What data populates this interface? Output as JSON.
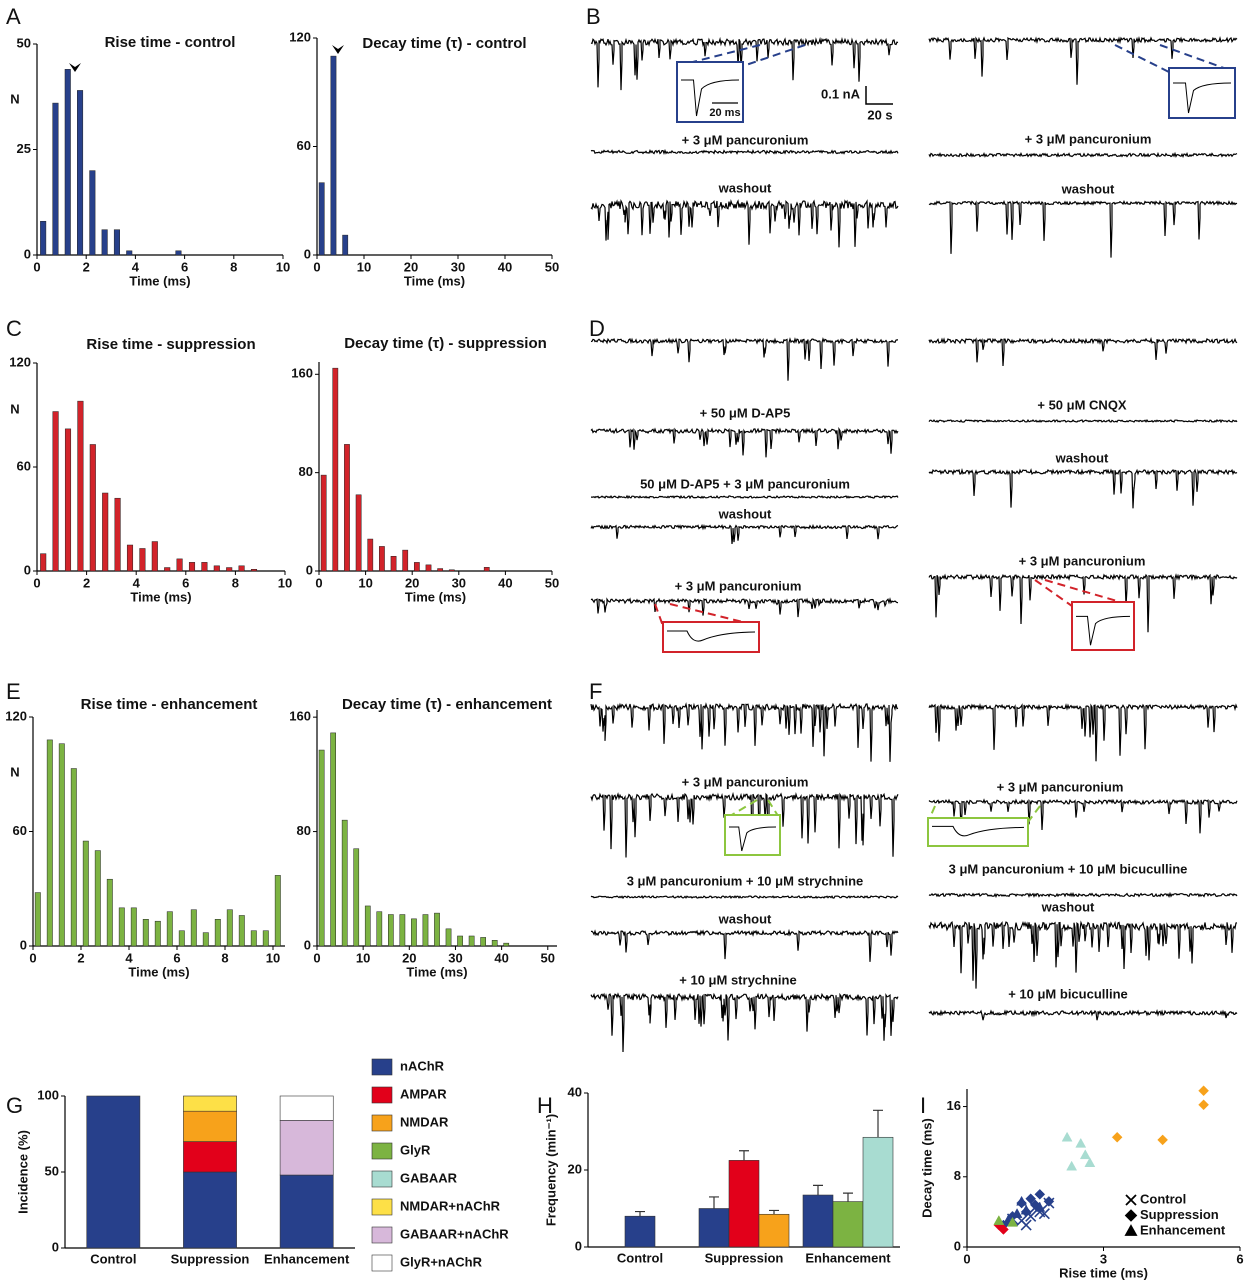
{
  "panel_letters": [
    "A",
    "B",
    "C",
    "D",
    "E",
    "F",
    "G",
    "H",
    "I"
  ],
  "scale_bar": {
    "current": "0.1 nA",
    "time": "20 s",
    "inset_time": "20 ms"
  },
  "trace_panels": [
    {
      "left": [
        "+ 3 μM pancuronium",
        "washout"
      ],
      "right": [
        "+ 3 μM pancuronium",
        "washout"
      ]
    },
    {
      "left": [
        "+ 50 μM D-AP5",
        "50 μM D-AP5 + 3 μM pancuronium",
        "washout",
        "+ 3 μM pancuronium"
      ],
      "right": [
        "+ 50 μM CNQX",
        "washout",
        "+ 3 μM pancuronium"
      ]
    },
    {
      "left": [
        "+ 3 μM pancuronium",
        "3 μM pancuronium + 10 μM strychnine",
        "washout",
        "+ 10 μM strychnine"
      ],
      "right": [
        "+ 3 μM pancuronium",
        "3 μM pancuronium + 10 μM bicuculline",
        "washout",
        "+ 10 μM bicuculline"
      ]
    }
  ],
  "chart_data": [
    {
      "type": "bar",
      "title": "Rise time - control",
      "xlabel": "Time (ms)",
      "ylabel": "N",
      "color": "#27408b",
      "x": [
        0.25,
        0.75,
        1.25,
        1.75,
        2.25,
        2.75,
        3.25,
        3.75,
        5.75
      ],
      "values": [
        8,
        36,
        44,
        39,
        20,
        6,
        6,
        1,
        1
      ],
      "xlim": [
        0,
        10
      ],
      "ylim": [
        0,
        50
      ],
      "xticks": [
        0,
        2,
        4,
        6,
        8,
        10
      ],
      "yticks": [
        0,
        25,
        50
      ]
    },
    {
      "type": "bar",
      "title": "Decay time (τ) - control",
      "xlabel": "Time (ms)",
      "color": "#27408b",
      "x": [
        1,
        3.5,
        6
      ],
      "values": [
        40,
        110,
        11
      ],
      "xlim": [
        0,
        50
      ],
      "ylim": [
        0,
        120
      ],
      "xticks": [
        0,
        10,
        20,
        30,
        40,
        50
      ],
      "yticks": [
        0,
        60,
        120
      ]
    },
    {
      "type": "bar",
      "title": "Rise time - suppression",
      "xlabel": "Time (ms)",
      "ylabel": "N",
      "color": "#d2232a",
      "x": [
        0.25,
        0.75,
        1.25,
        1.75,
        2.25,
        2.75,
        3.25,
        3.75,
        4.25,
        4.75,
        5.25,
        5.75,
        6.25,
        6.75,
        7.25,
        7.75,
        8.25,
        8.75
      ],
      "values": [
        10,
        92,
        82,
        98,
        73,
        45,
        42,
        15,
        13,
        17,
        2,
        7,
        5,
        5,
        3,
        2,
        3,
        1
      ],
      "xlim": [
        0,
        10
      ],
      "ylim": [
        0,
        120
      ],
      "xticks": [
        0,
        2,
        4,
        6,
        8,
        10
      ],
      "yticks": [
        0,
        60,
        120
      ]
    },
    {
      "type": "bar",
      "title": "Decay time (τ) - suppression",
      "xlabel": "Time (ms)",
      "color": "#d2232a",
      "x": [
        1,
        3.5,
        6,
        8.5,
        11,
        13.5,
        16,
        18.5,
        21,
        23.5,
        26,
        28.5,
        36
      ],
      "values": [
        78,
        165,
        103,
        62,
        26,
        20,
        12,
        17,
        7,
        5,
        2,
        1,
        3
      ],
      "xlim": [
        0,
        50
      ],
      "ylim": [
        0,
        170
      ],
      "xticks": [
        0,
        10,
        20,
        30,
        40,
        50
      ],
      "yticks": [
        0,
        80,
        160
      ]
    },
    {
      "type": "bar",
      "title": "Rise time - enhancement",
      "xlabel": "Time (ms)",
      "ylabel": "N",
      "color": "#7cb342",
      "x": [
        0.2,
        0.7,
        1.2,
        1.7,
        2.2,
        2.7,
        3.2,
        3.7,
        4.2,
        4.7,
        5.2,
        5.7,
        6.2,
        6.7,
        7.2,
        7.7,
        8.2,
        8.7,
        9.2,
        9.7,
        10.2
      ],
      "values": [
        28,
        108,
        106,
        93,
        55,
        50,
        35,
        20,
        20,
        14,
        13,
        18,
        8,
        19,
        7,
        14,
        19,
        16,
        8,
        8,
        37
      ],
      "xlim": [
        0,
        10.5
      ],
      "ylim": [
        0,
        120
      ],
      "xticks": [
        0,
        2,
        4,
        6,
        8,
        10
      ],
      "yticks": [
        0,
        60,
        120
      ]
    },
    {
      "type": "bar",
      "title": "Decay time (τ) - enhancement",
      "xlabel": "Time (ms)",
      "color": "#7cb342",
      "x": [
        1,
        3.5,
        6,
        8.5,
        11,
        13.5,
        16,
        18.5,
        21,
        23.5,
        26,
        28.5,
        31,
        33.5,
        36,
        38.5,
        41
      ],
      "values": [
        137,
        149,
        88,
        68,
        28,
        24,
        22,
        22,
        19,
        22,
        23,
        12,
        7,
        7,
        6,
        4,
        2
      ],
      "xlim": [
        0,
        52
      ],
      "ylim": [
        0,
        165
      ],
      "xticks": [
        0,
        10,
        20,
        30,
        40,
        50
      ],
      "yticks": [
        0,
        80,
        160
      ]
    },
    {
      "type": "stacked_bar",
      "ylabel": "Incidence (%)",
      "categories": [
        "Control",
        "Suppression",
        "Enhancement"
      ],
      "ylim": [
        0,
        100
      ],
      "yticks": [
        0,
        50,
        100
      ],
      "legend": "right",
      "series": [
        {
          "name": "nAChR",
          "color": "#27408b",
          "values": [
            100,
            50,
            48
          ]
        },
        {
          "name": "AMPAR",
          "color": "#e2001a",
          "values": [
            0,
            20,
            0
          ]
        },
        {
          "name": "NMDAR",
          "color": "#f7a21b",
          "values": [
            0,
            20,
            0
          ]
        },
        {
          "name": "GlyR",
          "color": "#7cb342",
          "values": [
            0,
            0,
            0
          ]
        },
        {
          "name": "GABAAR",
          "color": "#a8dcd1",
          "values": [
            0,
            0,
            0
          ]
        },
        {
          "name": "NMDAR+nAChR",
          "color": "#fde047",
          "values": [
            0,
            10,
            0
          ]
        },
        {
          "name": "GABAAR+nAChR",
          "color": "#d7b8da",
          "values": [
            0,
            0,
            36
          ]
        },
        {
          "name": "GlyR+nAChR",
          "color": "#ffffff",
          "values": [
            0,
            0,
            16
          ]
        }
      ]
    },
    {
      "type": "grouped_bar",
      "ylabel": "Frequency (min⁻¹)",
      "categories": [
        "Control",
        "Suppression",
        "Enhancement"
      ],
      "ylim": [
        0,
        40
      ],
      "yticks": [
        0,
        20,
        40
      ],
      "series": [
        {
          "color": "#27408b",
          "values": [
            8,
            10,
            13.5
          ],
          "errors": [
            1.2,
            3,
            2.5
          ]
        },
        {
          "color": "#e2001a",
          "values": [
            null,
            22.5,
            null
          ],
          "errors": [
            null,
            2.5,
            null
          ]
        },
        {
          "color": "#f7a21b",
          "values": [
            null,
            8.5,
            null
          ],
          "errors": [
            null,
            1,
            null
          ]
        },
        {
          "color": "#7cb342",
          "values": [
            null,
            null,
            11.8
          ],
          "errors": [
            null,
            null,
            2.2
          ]
        },
        {
          "color": "#a8dcd1",
          "values": [
            null,
            null,
            28.5
          ],
          "errors": [
            null,
            null,
            7
          ]
        }
      ]
    },
    {
      "type": "scatter",
      "xlabel": "Rise time (ms)",
      "ylabel": "Decay time (ms)",
      "xlim": [
        0,
        6
      ],
      "ylim": [
        0,
        18
      ],
      "xticks": [
        0,
        3,
        6
      ],
      "yticks": [
        0,
        8,
        16
      ],
      "legend": "lower right",
      "series": [
        {
          "name": "Control",
          "marker": "x",
          "color": "#000000",
          "x": [
            1.2,
            1.4,
            1.6,
            1.8,
            1.3,
            1.0,
            1.5,
            1.7
          ],
          "y": [
            3,
            3.5,
            4,
            5,
            2.5,
            3.2,
            4.5,
            3.8
          ],
          "colors": [
            "#27408b",
            "#27408b",
            "#27408b",
            "#27408b",
            "#27408b",
            "#27408b",
            "#27408b",
            "#27408b"
          ]
        },
        {
          "name": "Suppression",
          "marker": "diamond",
          "color": "#000000",
          "x": [
            1.2,
            1.4,
            1.6,
            1.8,
            1.3,
            1.0,
            0.8,
            1.5,
            0.7,
            0.8,
            3.3,
            4.3,
            5.2,
            5.2
          ],
          "y": [
            5,
            5.5,
            6,
            5.2,
            4,
            3.5,
            2.5,
            4.8,
            2.5,
            2,
            12.5,
            12.2,
            17.8,
            16.2
          ],
          "colors": [
            "#27408b",
            "#27408b",
            "#27408b",
            "#27408b",
            "#27408b",
            "#27408b",
            "#27408b",
            "#27408b",
            "#e2001a",
            "#e2001a",
            "#f7a21b",
            "#f7a21b",
            "#f7a21b",
            "#f7a21b"
          ]
        },
        {
          "name": "Enhancement",
          "marker": "triangle",
          "color": "#000000",
          "x": [
            0.9,
            1.1,
            1.3,
            1.6,
            1.2,
            0.7,
            1.0,
            2.2,
            2.5,
            2.3,
            2.6,
            2.7
          ],
          "y": [
            3,
            3.8,
            4.2,
            4.5,
            5.2,
            3,
            2.8,
            12.5,
            11.8,
            9.2,
            10.5,
            9.6
          ],
          "colors": [
            "#27408b",
            "#27408b",
            "#27408b",
            "#27408b",
            "#27408b",
            "#7cb342",
            "#7cb342",
            "#a8dcd1",
            "#a8dcd1",
            "#a8dcd1",
            "#a8dcd1",
            "#a8dcd1"
          ]
        }
      ]
    }
  ]
}
